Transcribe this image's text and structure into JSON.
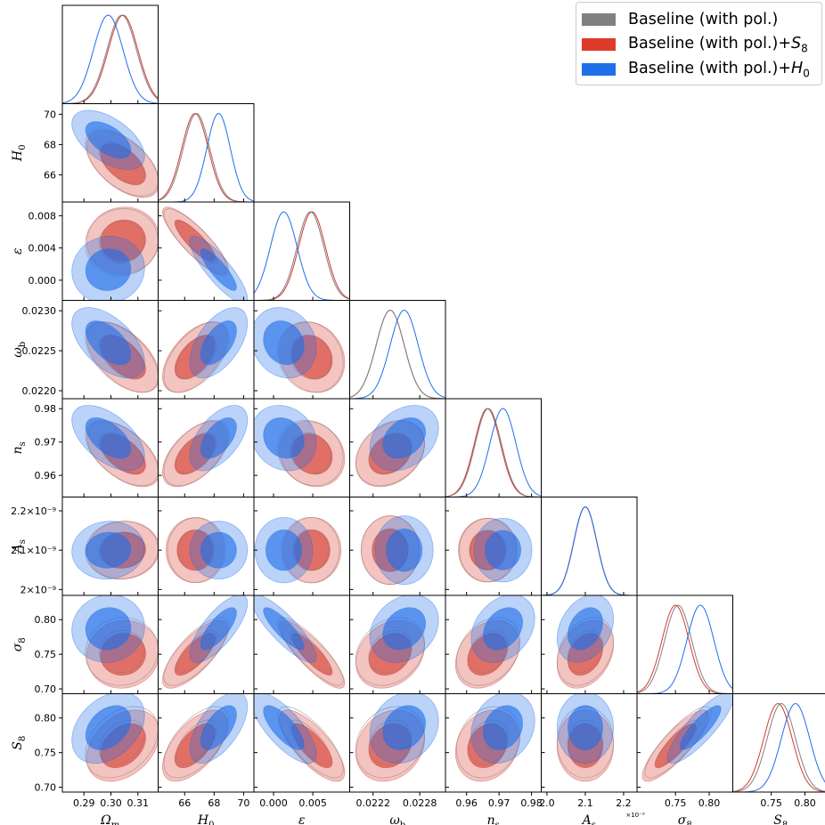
{
  "legend": {
    "items": [
      {
        "label": "Baseline (with pol.)",
        "suffix": "",
        "sub": "",
        "color": "#808080"
      },
      {
        "label": "Baseline (with pol.)+",
        "suffix": "S",
        "sub": "8",
        "color": "#e03a2b"
      },
      {
        "label": "Baseline (with pol.)+",
        "suffix": "H",
        "sub": "0",
        "color": "#1f70e8"
      }
    ]
  },
  "chart_data": {
    "type": "triangle-corner-plot",
    "colors": {
      "baseline": "#808080",
      "s8": "#d63a2f",
      "h0": "#1f6ee8"
    },
    "parameters": [
      {
        "id": "Om",
        "label": "Ω",
        "sub": "m",
        "range": [
          0.282,
          0.3175
        ],
        "ticks": [
          0.29,
          0.3,
          0.31
        ],
        "tick_labels": [
          "0.29",
          "0.30",
          "0.31"
        ],
        "means": {
          "baseline": 0.304,
          "s8": 0.3045,
          "h0": 0.299
        },
        "sigmas": {
          "baseline": 0.0055,
          "s8": 0.0055,
          "h0": 0.0055
        }
      },
      {
        "id": "H0",
        "label": "H",
        "sub": "0",
        "range": [
          64.2,
          70.7
        ],
        "ticks": [
          66,
          68,
          70
        ],
        "tick_labels": [
          "66",
          "68",
          "70"
        ],
        "means": {
          "baseline": 66.8,
          "s8": 66.7,
          "h0": 68.3
        },
        "sigmas": {
          "baseline": 0.9,
          "s8": 0.9,
          "h0": 0.8
        }
      },
      {
        "id": "eps",
        "label": "ε",
        "sub": "",
        "range": [
          -0.0025,
          0.0097
        ],
        "ticks": [
          0.0,
          0.004,
          0.008
        ],
        "tick_labels": [
          "0.000",
          "0.004",
          "0.008"
        ],
        "xtick_labels": [
          "0.000",
          "0.005"
        ],
        "xticks": [
          0.0,
          0.005
        ],
        "means": {
          "baseline": 0.0047,
          "s8": 0.0049,
          "h0": 0.0013
        },
        "sigmas": {
          "baseline": 0.0017,
          "s8": 0.0017,
          "h0": 0.0017
        }
      },
      {
        "id": "wb",
        "label": "ω",
        "sub": "b",
        "range": [
          0.0219,
          0.02313
        ],
        "ticks": [
          0.022,
          0.0225,
          0.023
        ],
        "tick_labels": [
          "0.0220",
          "0.0225",
          "0.0230"
        ],
        "xticks": [
          0.0222,
          0.0228
        ],
        "xtick_labels": [
          "0.0222",
          "0.0228"
        ],
        "means": {
          "baseline": 0.02242,
          "s8": 0.02242,
          "h0": 0.0226
        },
        "sigmas": {
          "baseline": 0.00018,
          "s8": 0.00018,
          "h0": 0.00018
        }
      },
      {
        "id": "ns",
        "label": "n",
        "sub": "s",
        "range": [
          0.9535,
          0.983
        ],
        "ticks": [
          0.96,
          0.97,
          0.98
        ],
        "tick_labels": [
          "0.96",
          "0.97",
          "0.98"
        ],
        "means": {
          "baseline": 0.9667,
          "s8": 0.9664,
          "h0": 0.9712
        },
        "sigmas": {
          "baseline": 0.004,
          "s8": 0.004,
          "h0": 0.004
        }
      },
      {
        "id": "As",
        "label": "A",
        "sub": "s",
        "range": [
          1.985,
          2.235
        ],
        "ticks": [
          2.0,
          2.1,
          2.2
        ],
        "tick_labels": [
          "2.0",
          "2.1",
          "2.2"
        ],
        "ytick_labels": [
          "2×10⁻⁹",
          "2.1×10⁻⁹",
          "2.2×10⁻⁹"
        ],
        "offset_label": "×10⁻⁹",
        "means": {
          "baseline": 2.1,
          "s8": 2.1,
          "h0": 2.1
        },
        "sigmas": {
          "baseline": 0.03,
          "s8": 0.03,
          "h0": 0.03
        }
      },
      {
        "id": "s8",
        "label": "σ",
        "sub": "8",
        "range": [
          0.693,
          0.835
        ],
        "ticks": [
          0.7,
          0.75,
          0.8
        ],
        "tick_labels": [
          "0.70",
          "0.75",
          "0.80"
        ],
        "xticks": [
          0.75,
          0.8
        ],
        "xtick_labels": [
          "0.75",
          "0.80"
        ],
        "means": {
          "baseline": 0.754,
          "s8": 0.75,
          "h0": 0.787
        },
        "sigmas": {
          "baseline": 0.02,
          "s8": 0.02,
          "h0": 0.02
        }
      },
      {
        "id": "S8",
        "label": "S",
        "sub": "8",
        "range": [
          0.693,
          0.835
        ],
        "ticks": [
          0.7,
          0.75,
          0.8
        ],
        "tick_labels": [
          "0.70",
          "0.75",
          "0.80"
        ],
        "xticks": [
          0.75,
          0.8
        ],
        "xtick_labels": [
          "0.75",
          "0.80"
        ],
        "means": {
          "baseline": 0.765,
          "s8": 0.76,
          "h0": 0.786
        },
        "sigmas": {
          "baseline": 0.021,
          "s8": 0.021,
          "h0": 0.021
        }
      }
    ],
    "correlations": [
      [
        1,
        -0.55,
        0.05,
        -0.55,
        -0.55,
        0.05,
        0.05,
        0.35
      ],
      [
        -0.55,
        1,
        -0.85,
        0.55,
        0.55,
        0.0,
        0.75,
        0.6
      ],
      [
        0.05,
        -0.85,
        1,
        -0.15,
        -0.15,
        0.0,
        -0.85,
        -0.75
      ],
      [
        -0.55,
        0.55,
        -0.15,
        1,
        0.3,
        0.0,
        0.25,
        0.2
      ],
      [
        -0.55,
        0.55,
        -0.15,
        0.3,
        1,
        0.0,
        0.3,
        0.2
      ],
      [
        0.05,
        0.0,
        0.0,
        0.0,
        0.0,
        1,
        0.3,
        0.0
      ],
      [
        0.05,
        0.75,
        -0.85,
        0.25,
        0.3,
        0.3,
        1,
        0.85
      ],
      [
        0.35,
        0.6,
        -0.75,
        0.2,
        0.2,
        0.0,
        0.85,
        1
      ]
    ]
  }
}
